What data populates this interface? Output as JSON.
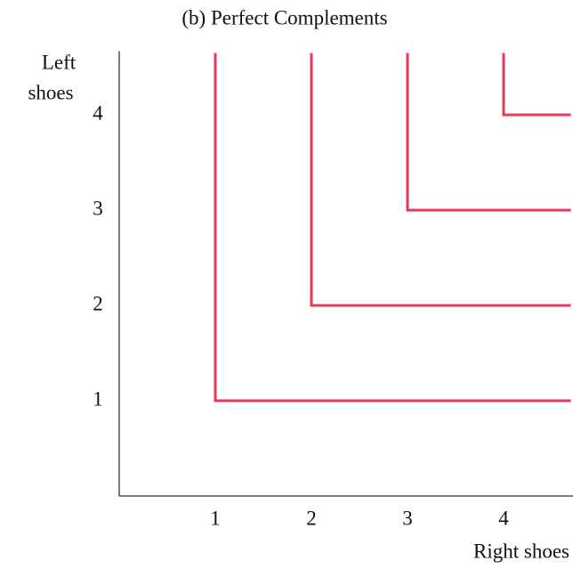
{
  "chart_data": {
    "type": "line",
    "title": "(b) Perfect Complements",
    "xlabel": "Right shoes",
    "ylabel": [
      "Left",
      "shoes"
    ],
    "xlim": [
      0,
      4.7
    ],
    "ylim": [
      0,
      4.65
    ],
    "xticks": [
      1,
      2,
      3,
      4
    ],
    "yticks": [
      1,
      2,
      3,
      4
    ],
    "grid": false,
    "series": [
      {
        "color": "#e8395a",
        "x": [
          1,
          1,
          4.7
        ],
        "values": [
          4.65,
          1,
          1
        ]
      },
      {
        "color": "#e8395a",
        "x": [
          2,
          2,
          4.7
        ],
        "values": [
          4.65,
          2,
          2
        ]
      },
      {
        "color": "#e8395a",
        "x": [
          3,
          3,
          4.7
        ],
        "values": [
          4.65,
          3,
          3
        ]
      },
      {
        "color": "#e8395a",
        "x": [
          4,
          4,
          4.7
        ],
        "values": [
          4.65,
          4,
          4
        ]
      }
    ]
  }
}
